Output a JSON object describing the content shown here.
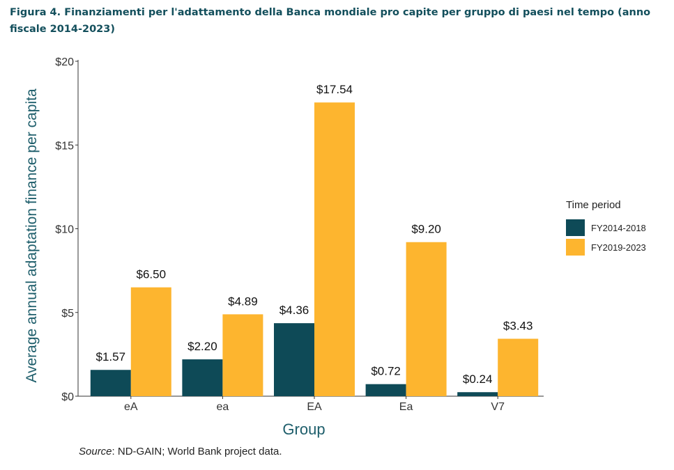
{
  "figure": {
    "title": "Figura 4. Finanziamenti per l'adattamento della Banca mondiale pro capite per gruppo di paesi nel tempo (anno fiscale 2014-2023)",
    "source_label": "Source",
    "source_text": ": ND-GAIN; World Bank project data."
  },
  "colors": {
    "FY2014-2018": "#0e4a57",
    "FY2019-2023": "#fdb52f",
    "axis_text": "#1e5e6b"
  },
  "chart_data": {
    "type": "bar",
    "title": "",
    "xlabel": "Group",
    "ylabel": "Average annual adaptation finance per capita",
    "categories": [
      "eA",
      "ea",
      "EA",
      "Ea",
      "V7"
    ],
    "ylim": [
      0,
      20
    ],
    "yticks": [
      0,
      5,
      10,
      15,
      20
    ],
    "ytick_labels": [
      "$0",
      "$5",
      "$10",
      "$15",
      "$20"
    ],
    "legend_title": "Time period",
    "legend_position": "right",
    "grid": false,
    "series": [
      {
        "name": "FY2014-2018",
        "values": [
          1.57,
          2.2,
          4.36,
          0.72,
          0.24
        ],
        "labels": [
          "$1.57",
          "$2.20",
          "$4.36",
          "$0.72",
          "$0.24"
        ]
      },
      {
        "name": "FY2019-2023",
        "values": [
          6.5,
          4.89,
          17.54,
          9.2,
          3.43
        ],
        "labels": [
          "$6.50",
          "$4.89",
          "$17.54",
          "$9.20",
          "$3.43"
        ]
      }
    ]
  }
}
